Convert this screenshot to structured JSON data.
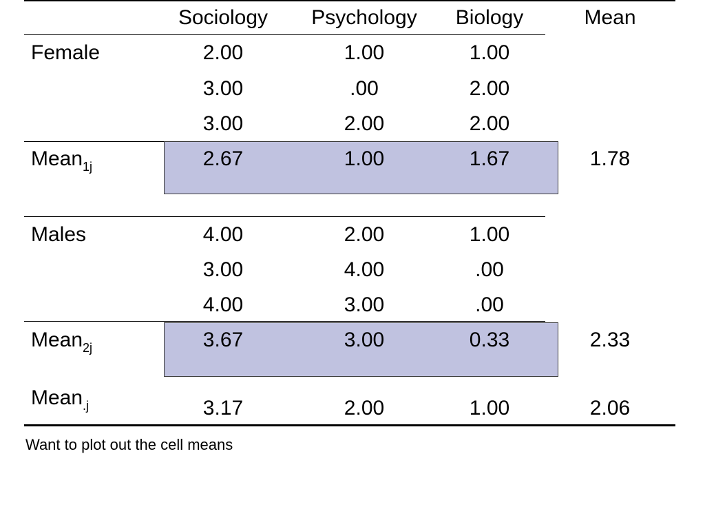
{
  "table": {
    "headers": {
      "col1": "Sociology",
      "col2": "Psychology",
      "col3": "Biology",
      "mean": "Mean"
    },
    "female": {
      "label": "Female",
      "rows": [
        [
          "2.00",
          "1.00",
          "1.00"
        ],
        [
          "3.00",
          ".00",
          "2.00"
        ],
        [
          "3.00",
          "2.00",
          "2.00"
        ]
      ],
      "mean_label": "Mean",
      "mean_sub": "1j",
      "means": [
        "2.67",
        "1.00",
        "1.67"
      ],
      "overall_mean": "1.78"
    },
    "male": {
      "label": "Males",
      "rows": [
        [
          "4.00",
          "2.00",
          "1.00"
        ],
        [
          "3.00",
          "4.00",
          ".00"
        ],
        [
          "4.00",
          "3.00",
          ".00"
        ]
      ],
      "mean_label": "Mean",
      "mean_sub": "2j",
      "means": [
        "3.67",
        "3.00",
        "0.33"
      ],
      "overall_mean": "2.33"
    },
    "column_means": {
      "label": "Mean",
      "sub": ".j",
      "values": [
        "3.17",
        "2.00",
        "1.00"
      ],
      "grand_mean": "2.06"
    },
    "highlight_color": "#c0c2e0"
  },
  "caption": "Want to plot out the cell means"
}
